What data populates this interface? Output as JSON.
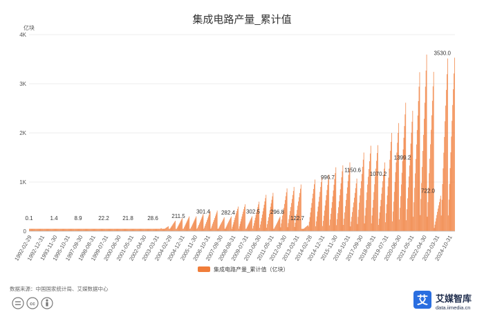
{
  "chart_data": {
    "type": "bar",
    "title": "集成电路产量_累计值",
    "unit_label": "亿块",
    "y_ticks": [
      "0",
      "1K",
      "2K",
      "3K",
      "4K"
    ],
    "y_tick_values": [
      0,
      1000,
      2000,
      3000,
      4000
    ],
    "ylim": [
      0,
      4000
    ],
    "grid": true,
    "x_tick_labels": [
      "1992-02-29",
      "1992-12-31",
      "1993-11-30",
      "1995-10-31",
      "1997-09-30",
      "1998-08-31",
      "1999-07-31",
      "2000-06-30",
      "2001-05-31",
      "2002-04-30",
      "2003-03-31",
      "2004-02-29",
      "2004-12-31",
      "2005-11-30",
      "2006-10-31",
      "2007-09-30",
      "2008-08-31",
      "2009-07-31",
      "2010-06-30",
      "2011-05-31",
      "2012-04-30",
      "2013-03-31",
      "2014-02-28",
      "2014-12-31",
      "2015-11-30",
      "2016-10-31",
      "2017-09-30",
      "2018-08-31",
      "2019-07-31",
      "2020-06-30",
      "2021-05-31",
      "2022-04-30",
      "2023-03-31",
      "2024-10-31"
    ],
    "bar_color": "#f07d3a",
    "series": [
      {
        "name": "集成电路产量_累计值（亿块）",
        "start_year": 1992,
        "year_end_values": [
          0.1,
          0.3,
          0.5,
          0.8,
          1.2,
          1.4,
          3,
          5,
          8.9,
          12,
          15,
          17,
          22.2,
          21.8,
          22,
          25,
          28.6,
          40,
          60,
          100,
          211.5,
          264,
          300,
          301.4,
          350,
          411,
          418,
          282.4,
          300,
          500,
          547,
          302.5,
          600,
          740,
          780,
          296.8,
          870,
          900,
          950,
          122.7,
          1050,
          1100,
          1150.6,
          1300,
          1340,
          1400,
          1070.2,
          1600,
          1739,
          1750,
          1399.2,
          2000,
          2200,
          2614,
          2450,
          3235,
          3594,
          3242,
          722.0,
          3514,
          3530.0
        ],
        "monthly_pattern_note": "cumulative within each year, months Feb–Dec",
        "annotations": [
          {
            "label": "0.1",
            "value": 0.1
          },
          {
            "label": "1.4",
            "value": 1.4
          },
          {
            "label": "8.9",
            "value": 8.9
          },
          {
            "label": "22.2",
            "value": 22.2
          },
          {
            "label": "21.8",
            "value": 21.8
          },
          {
            "label": "28.6",
            "value": 28.6
          },
          {
            "label": "211.5",
            "value": 211.5
          },
          {
            "label": "301.4",
            "value": 301.4
          },
          {
            "label": "282.4",
            "value": 282.4
          },
          {
            "label": "302.5",
            "value": 302.5
          },
          {
            "label": "296.8",
            "value": 296.8
          },
          {
            "label": "122.7",
            "value": 122.7
          },
          {
            "label": "996.7",
            "value": 996.7
          },
          {
            "label": "1150.6",
            "value": 1150.6
          },
          {
            "label": "1070.2",
            "value": 1070.2
          },
          {
            "label": "1399.2",
            "value": 1399.2
          },
          {
            "label": "722.0",
            "value": 722.0
          },
          {
            "label": "3530.0",
            "value": 3530.0
          }
        ]
      }
    ],
    "legend": {
      "position": "bottom-center",
      "label": "集成电路产量_累计值（亿块）"
    }
  },
  "footer": {
    "source": "数据来源：中国国家统计局、艾媒数据中心",
    "license_icons": [
      "equal-icon",
      "cc-icon",
      "person-icon"
    ]
  },
  "brand": {
    "name": "艾媒智库",
    "url": "data.iimedia.cn",
    "logo_char": "艾",
    "color": "#2a6ee0"
  }
}
